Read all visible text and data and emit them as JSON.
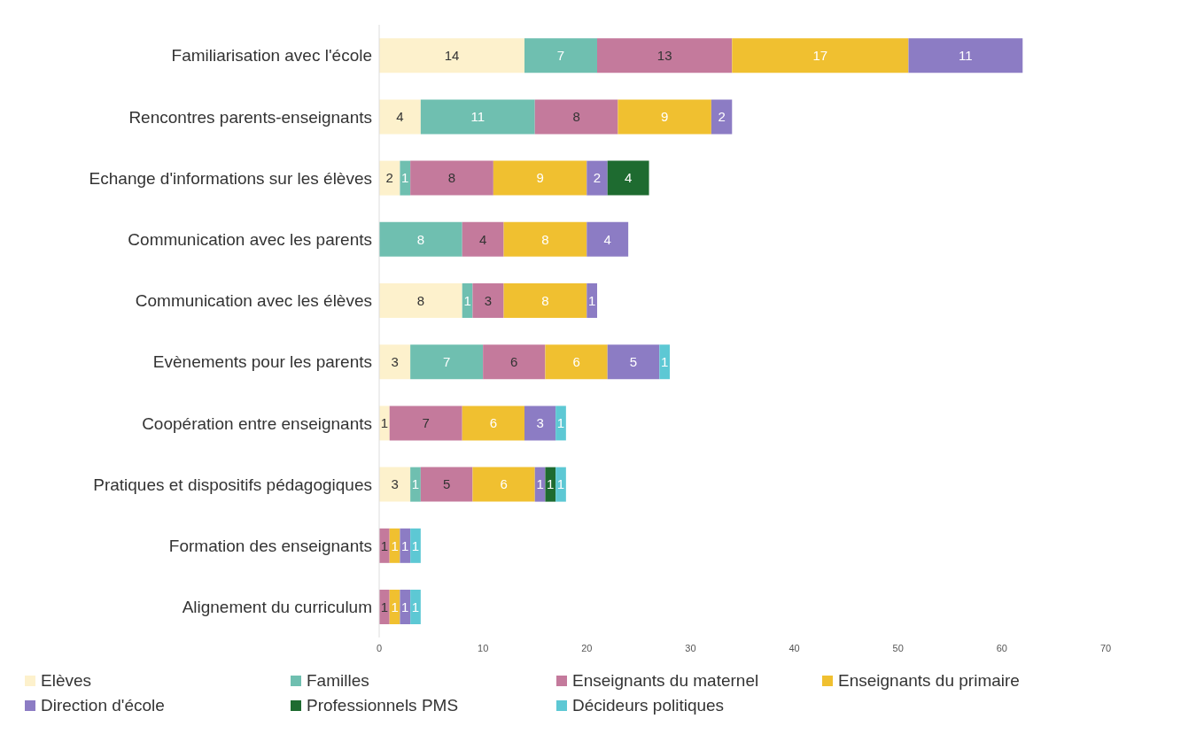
{
  "chart_data": {
    "type": "bar",
    "orientation": "horizontal",
    "stacked": true,
    "data_labels": true,
    "grid": false,
    "legend": "bottom",
    "categories": [
      "Familiarisation avec l'école",
      "Rencontres parents-enseignants",
      "Echange d'informations sur les élèves",
      "Communication avec les parents",
      "Communication avec les élèves",
      "Evènements pour les parents",
      "Coopération entre enseignants",
      "Pratiques et dispositifs pédagogiques",
      "Formation des enseignants",
      "Alignement du curriculum"
    ],
    "xlim": [
      0,
      70
    ],
    "xticks": [
      0,
      10,
      20,
      30,
      40,
      50,
      60,
      70
    ],
    "series": [
      {
        "name": "Elèves",
        "color": "#fdf1cc",
        "values": [
          14,
          4,
          2,
          null,
          8,
          3,
          1,
          3,
          null,
          null
        ]
      },
      {
        "name": "Familles",
        "color": "#6fbfb0",
        "values": [
          7,
          11,
          1,
          8,
          1,
          7,
          null,
          1,
          null,
          null
        ]
      },
      {
        "name": "Enseignants du maternel",
        "color": "#c47a9c",
        "values": [
          13,
          8,
          8,
          4,
          3,
          6,
          7,
          5,
          1,
          1
        ]
      },
      {
        "name": "Enseignants du primaire",
        "color": "#f0c030",
        "values": [
          17,
          9,
          9,
          8,
          8,
          6,
          6,
          6,
          1,
          1
        ]
      },
      {
        "name": "Direction d'école",
        "color": "#8c7cc4",
        "values": [
          11,
          2,
          2,
          4,
          1,
          5,
          3,
          1,
          1,
          1
        ]
      },
      {
        "name": "Professionnels PMS",
        "color": "#1e6b30",
        "values": [
          null,
          null,
          4,
          null,
          null,
          null,
          null,
          1,
          null,
          null
        ]
      },
      {
        "name": "Décideurs politiques",
        "color": "#5dc8d4",
        "values": [
          null,
          null,
          null,
          null,
          null,
          1,
          1,
          1,
          1,
          1
        ]
      }
    ]
  }
}
